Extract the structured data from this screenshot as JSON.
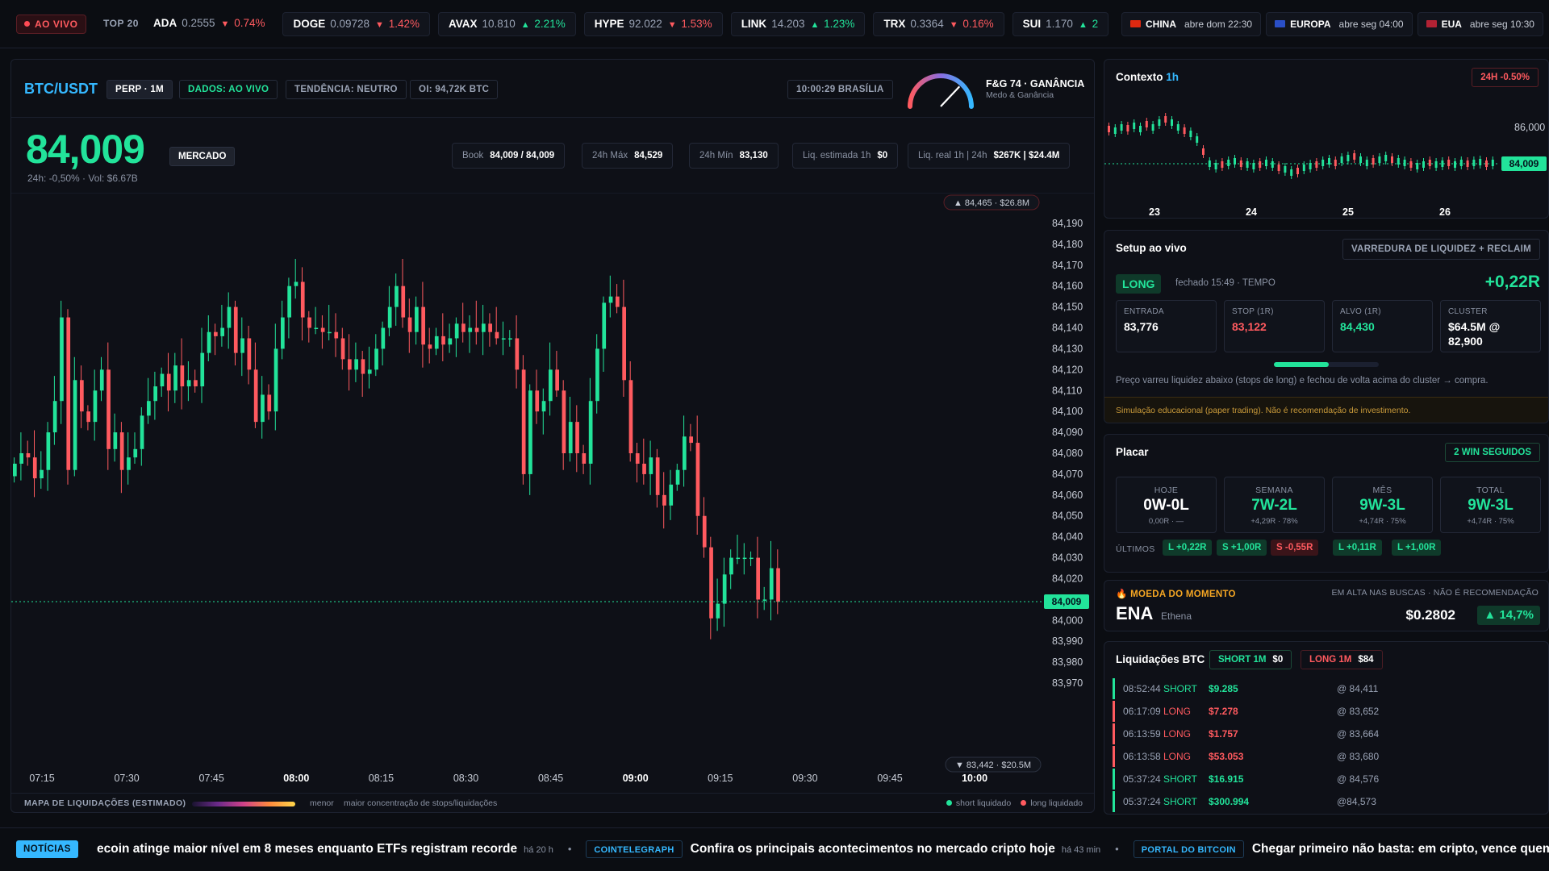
{
  "ticker": {
    "live_label": "AO VIVO",
    "top_label": "TOP 20",
    "coins": [
      {
        "symbol": "ADA",
        "price": "0.2555",
        "change": "0.74%",
        "dir": "down"
      },
      {
        "symbol": "DOGE",
        "price": "0.09728",
        "change": "1.42%",
        "dir": "down"
      },
      {
        "symbol": "AVAX",
        "price": "10.810",
        "change": "2.21%",
        "dir": "up"
      },
      {
        "symbol": "HYPE",
        "price": "92.022",
        "change": "1.53%",
        "dir": "down"
      },
      {
        "symbol": "LINK",
        "price": "14.203",
        "change": "1.23%",
        "dir": "up"
      },
      {
        "symbol": "TRX",
        "price": "0.3364",
        "change": "0.16%",
        "dir": "down"
      },
      {
        "symbol": "SUI",
        "price": "1.170",
        "change": "2",
        "dir": "up"
      }
    ],
    "markets": [
      {
        "name": "CHINA",
        "status": "abre dom 22:30"
      },
      {
        "name": "EUROPA",
        "status": "abre seg 04:00"
      },
      {
        "name": "EUA",
        "status": "abre seg 10:30"
      }
    ]
  },
  "header": {
    "pair": "BTC/USDT",
    "perp": "PERP · 1M",
    "dados": "DADOS: AO VIVO",
    "tendencia": "TENDÊNCIA: NEUTRO",
    "oi": "OI: 94,72K BTC",
    "clock": "10:00:29 BRASÍLIA",
    "fg_title": "F&G 74 · GANÂNCIA",
    "fg_sub": "Medo & Ganância",
    "fg_value": 74
  },
  "quote": {
    "price": "84,009",
    "mercado": "MERCADO",
    "sub": "24h: -0,50% · Vol: $6.67B",
    "stats": [
      {
        "label": "Book",
        "value": "84,009 / 84,009"
      },
      {
        "label": "24h Máx",
        "value": "84,529"
      },
      {
        "label": "24h Mín",
        "value": "83,130"
      },
      {
        "label": "Liq. estimada 1h",
        "value": "$0"
      },
      {
        "label": "Liq. real 1h | 24h",
        "value": "$267K | $24.4M"
      }
    ]
  },
  "chart_data": {
    "type": "candlestick",
    "ylim": [
      83965,
      84195
    ],
    "y_ticks": [
      "84,190",
      "84,180",
      "84,170",
      "84,160",
      "84,150",
      "84,140",
      "84,130",
      "84,120",
      "84,110",
      "84,100",
      "84,090",
      "84,080",
      "84,070",
      "84,060",
      "84,050",
      "84,040",
      "84,030",
      "84,020",
      "84,010",
      "84,000",
      "83,990",
      "83,980",
      "83,970"
    ],
    "x_ticks": [
      {
        "label": "07:15",
        "bold": false
      },
      {
        "label": "07:30",
        "bold": false
      },
      {
        "label": "07:45",
        "bold": false
      },
      {
        "label": "08:00",
        "bold": true
      },
      {
        "label": "08:15",
        "bold": false
      },
      {
        "label": "08:30",
        "bold": false
      },
      {
        "label": "08:45",
        "bold": false
      },
      {
        "label": "09:00",
        "bold": true
      },
      {
        "label": "09:15",
        "bold": false
      },
      {
        "label": "09:30",
        "bold": false
      },
      {
        "label": "09:45",
        "bold": false
      },
      {
        "label": "10:00",
        "bold": true
      }
    ],
    "last_price": 84009,
    "last_price_label": "84,009",
    "high_marker": "84,465 · $26.8M",
    "low_marker": "83,442 · $20.5M",
    "closes": [
      84075,
      84080,
      84078,
      84068,
      84072,
      84090,
      84105,
      84145,
      84072,
      84115,
      84100,
      84095,
      84110,
      84120,
      84082,
      84090,
      84072,
      84078,
      84082,
      84098,
      84105,
      84112,
      84118,
      84110,
      84122,
      84112,
      84115,
      84112,
      84128,
      84138,
      84136,
      84140,
      84150,
      84128,
      84135,
      84120,
      84095,
      84108,
      84100,
      84130,
      84145,
      84160,
      84162,
      84145,
      84140,
      84140,
      84138,
      84138,
      84135,
      84125,
      84120,
      84125,
      84118,
      84120,
      84130,
      84140,
      84150,
      84160,
      84145,
      84138,
      84150,
      84132,
      84130,
      84136,
      84132,
      84135,
      84142,
      84138,
      84140,
      84138,
      84142,
      84138,
      84135,
      84135,
      84135,
      84120,
      84070,
      84110,
      84100,
      84105,
      84120,
      84110,
      84080,
      84095,
      84080,
      84075,
      84105,
      84130,
      84152,
      84155,
      84150,
      84115,
      84080,
      84075,
      84070,
      84078,
      84060,
      84055,
      84065,
      84072,
      84088,
      84085,
      84050,
      84035,
      84001,
      84008,
      84022,
      84030,
      84030,
      84030,
      84030,
      84010,
      84010,
      84025,
      84009
    ]
  },
  "liq_legend": {
    "title": "MAPA DE LIQUIDAÇÕES (ESTIMADO)",
    "menor": "menor",
    "maior": "maior concentração de stops/liquidações",
    "short": "short liquidado",
    "long": "long liquidado"
  },
  "context": {
    "title": "Contexto",
    "tf": "1h",
    "badge": "24H -0.50%",
    "y_label": "86,000",
    "last": "84,009",
    "days": [
      "23",
      "24",
      "25",
      "26"
    ]
  },
  "setup": {
    "title": "Setup ao vivo",
    "kind": "VARREDURA DE LIQUIDEZ + RECLAIM",
    "side": "LONG",
    "closed": "fechado 15:49 · TEMPO",
    "result": "+0,22R",
    "boxes": [
      {
        "label": "ENTRADA",
        "value": "83,776",
        "color": "#ffffff"
      },
      {
        "label": "STOP (1R)",
        "value": "83,122",
        "color": "#ff5a5f"
      },
      {
        "label": "ALVO (1R)",
        "value": "84,430",
        "color": "#22e39a"
      },
      {
        "label": "CLUSTER",
        "value": "$64.5M @ 82,900",
        "color": "#ffffff"
      }
    ],
    "desc": "Preço varreu liquidez abaixo (stops de long) e fechou de volta acima do cluster → compra.",
    "disclaimer": "Simulação educacional (paper trading). Não é recomendação de investimento."
  },
  "placar": {
    "title": "Placar",
    "streak": "2 WIN SEGUIDOS",
    "cards": [
      {
        "label": "HOJE",
        "value": "0W-0L",
        "sub": "0,00R · —",
        "color": "#ffffff"
      },
      {
        "label": "SEMANA",
        "value": "7W-2L",
        "sub": "+4,29R · 78%",
        "color": "#22e39a"
      },
      {
        "label": "MÊS",
        "value": "9W-3L",
        "sub": "+4,74R · 75%",
        "color": "#22e39a"
      },
      {
        "label": "TOTAL",
        "value": "9W-3L",
        "sub": "+4,74R · 75%",
        "color": "#22e39a"
      }
    ],
    "last_label": "ÚLTIMOS",
    "last": [
      {
        "text": "L +0,22R",
        "win": true
      },
      {
        "text": "S +1,00R",
        "win": true
      },
      {
        "text": "S -0,55R",
        "win": false
      },
      {
        "text": "L +0,11R",
        "win": true
      },
      {
        "text": "L +1,00R",
        "win": true
      }
    ]
  },
  "moeda": {
    "header": "MOEDA DO MOMENTO",
    "header_right": "EM ALTA NAS BUSCAS · NÃO É RECOMENDAÇÃO",
    "symbol": "ENA",
    "name": "Ethena",
    "price": "$0.2802",
    "change": "14,7%"
  },
  "liquidations": {
    "title": "Liquidações BTC",
    "short_tag": "SHORT 1M",
    "short_val": "$0",
    "long_tag": "LONG 1M",
    "long_val": "$84",
    "rows": [
      {
        "time": "08:52:44",
        "side": "SHORT",
        "amount": "$9.285",
        "price": "@ 84,411"
      },
      {
        "time": "06:17:09",
        "side": "LONG",
        "amount": "$7.278",
        "price": "@ 83,652"
      },
      {
        "time": "06:13:59",
        "side": "LONG",
        "amount": "$1.757",
        "price": "@ 83,664"
      },
      {
        "time": "06:13:58",
        "side": "LONG",
        "amount": "$53.053",
        "price": "@ 83,680"
      },
      {
        "time": "05:37:24",
        "side": "SHORT",
        "amount": "$16.915",
        "price": "@ 84,576"
      },
      {
        "time": "05:37:24",
        "side": "SHORT",
        "amount": "$300.994",
        "price": "@84,573"
      }
    ]
  },
  "news": {
    "label": "NOTÍCIAS",
    "items": [
      {
        "source": "",
        "headline": "ecoin atinge maior nível em 8 meses enquanto ETFs registram recorde",
        "ago": "há 20 h"
      },
      {
        "source": "COINTELEGRAPH",
        "headline": "Confira os principais acontecimentos no mercado cripto hoje",
        "ago": "há 43 min"
      },
      {
        "source": "PORTAL DO BITCOIN",
        "headline": "Chegar primeiro não basta: em cripto, vence quem",
        "ago": ""
      }
    ]
  },
  "colors": {
    "up": "#22e39a",
    "down": "#ff5a5f",
    "accent": "#35b8ff"
  }
}
